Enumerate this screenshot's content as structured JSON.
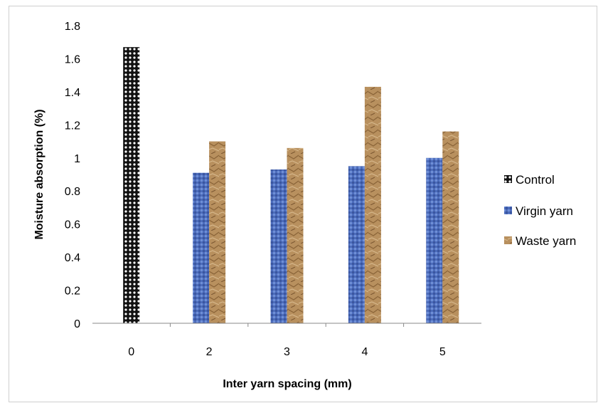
{
  "chart_data": {
    "type": "bar",
    "categories": [
      "0",
      "2",
      "3",
      "4",
      "5"
    ],
    "series": [
      {
        "name": "Control",
        "values": [
          1.67,
          null,
          null,
          null,
          null
        ]
      },
      {
        "name": "Virgin yarn",
        "values": [
          null,
          0.91,
          0.93,
          0.95,
          1.0
        ]
      },
      {
        "name": "Waste yarn",
        "values": [
          null,
          1.1,
          1.06,
          1.43,
          1.16
        ]
      }
    ],
    "title": "",
    "xlabel": "Inter yarn spacing (mm)",
    "ylabel": "Moisture absorption (%)",
    "ylim": [
      0,
      1.8
    ],
    "yticks": [
      "0",
      "0.2",
      "0.4",
      "0.6",
      "0.8",
      "1",
      "1.2",
      "1.4",
      "1.6",
      "1.8"
    ],
    "grid": false,
    "legend_position": "right",
    "colors": {
      "Control": "#1a1a1a",
      "Virgin yarn": "#4f6fbf",
      "Waste yarn": "#b58a55"
    }
  }
}
